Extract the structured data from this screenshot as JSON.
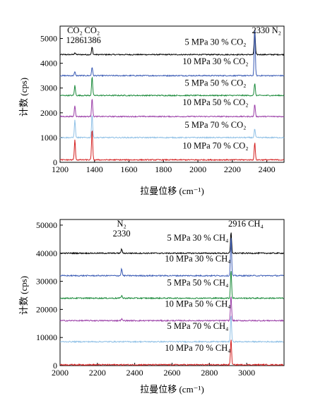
{
  "chart_data": [
    {
      "type": "line",
      "xlabel": "拉曼位移 (cm⁻¹)",
      "ylabel": "计数 (cps)",
      "xlim": [
        1200,
        2500
      ],
      "ylim": [
        0,
        5500
      ],
      "xticks": [
        1200,
        1400,
        1600,
        1800,
        2000,
        2200,
        2400
      ],
      "yticks": [
        0,
        1000,
        2000,
        3000,
        4000,
        5000
      ],
      "annotations": [
        {
          "text": "CO₂",
          "sub": "1286",
          "x": 1286
        },
        {
          "text": "CO₂",
          "sub": "1386",
          "x": 1386
        },
        {
          "text": "2330 N₂",
          "x": 2330
        }
      ],
      "series": [
        {
          "name": "5 MPa 30 % CO₂",
          "color": "#000000",
          "baseline": 4350,
          "peaks": [
            {
              "x": 1286,
              "h": 80
            },
            {
              "x": 1386,
              "h": 300
            },
            {
              "x": 2330,
              "h": 1050
            }
          ]
        },
        {
          "name": "10 MPa 30 % CO₂",
          "color": "#3a5bb5",
          "baseline": 3500,
          "peaks": [
            {
              "x": 1286,
              "h": 150
            },
            {
              "x": 1386,
              "h": 350
            },
            {
              "x": 2330,
              "h": 1900
            }
          ]
        },
        {
          "name": "5 MPa 50 % CO₂",
          "color": "#1a8a3a",
          "baseline": 2700,
          "peaks": [
            {
              "x": 1286,
              "h": 400
            },
            {
              "x": 1386,
              "h": 750
            },
            {
              "x": 2330,
              "h": 500
            }
          ]
        },
        {
          "name": "10 MPa 50 % CO₂",
          "color": "#9b3fa8",
          "baseline": 1850,
          "peaks": [
            {
              "x": 1286,
              "h": 450
            },
            {
              "x": 1386,
              "h": 750
            },
            {
              "x": 2330,
              "h": 500
            }
          ]
        },
        {
          "name": "5 MPa 70 % CO₂",
          "color": "#8fc0e6",
          "baseline": 1000,
          "peaks": [
            {
              "x": 1286,
              "h": 700
            },
            {
              "x": 1386,
              "h": 950
            },
            {
              "x": 2330,
              "h": 350
            }
          ]
        },
        {
          "name": "10 MPa 70 % CO₂",
          "color": "#d42020",
          "baseline": 100,
          "peaks": [
            {
              "x": 1286,
              "h": 800
            },
            {
              "x": 1386,
              "h": 1250
            },
            {
              "x": 2330,
              "h": 700
            }
          ]
        }
      ]
    },
    {
      "type": "line",
      "xlabel": "拉曼位移 (cm⁻¹)",
      "ylabel": "计数 (cps)",
      "xlim": [
        2000,
        3200
      ],
      "ylim": [
        0,
        52000
      ],
      "xticks": [
        2000,
        2200,
        2400,
        2600,
        2800,
        3000
      ],
      "yticks": [
        0,
        10000,
        20000,
        30000,
        40000,
        50000
      ],
      "annotations": [
        {
          "text": "N₂",
          "sub": "2330",
          "x": 2330
        },
        {
          "text": "2916 CH₄",
          "x": 2916
        }
      ],
      "series": [
        {
          "name": "5 MPa 30 % CH₄",
          "color": "#000000",
          "baseline": 40000,
          "peaks": [
            {
              "x": 2330,
              "h": 1500
            },
            {
              "x": 2916,
              "h": 7500
            }
          ]
        },
        {
          "name": "10 MPa 30 % CH₄",
          "color": "#3a5bb5",
          "baseline": 32000,
          "peaks": [
            {
              "x": 2330,
              "h": 2500
            },
            {
              "x": 2916,
              "h": 14000
            }
          ]
        },
        {
          "name": "5 MPa 50 % CH₄",
          "color": "#1a8a3a",
          "baseline": 24000,
          "peaks": [
            {
              "x": 2330,
              "h": 1000
            },
            {
              "x": 2916,
              "h": 10000
            }
          ]
        },
        {
          "name": "10 MPa 50 % CH₄",
          "color": "#9b3fa8",
          "baseline": 16000,
          "peaks": [
            {
              "x": 2330,
              "h": 600
            },
            {
              "x": 2916,
              "h": 9000
            }
          ]
        },
        {
          "name": "5 MPa 70 % CH₄",
          "color": "#8fc0e6",
          "baseline": 8500,
          "peaks": [
            {
              "x": 2916,
              "h": 9500
            }
          ]
        },
        {
          "name": "10 MPa 70 % CH₄",
          "color": "#d42020",
          "baseline": 300,
          "peaks": [
            {
              "x": 2916,
              "h": 9000
            }
          ]
        }
      ]
    }
  ]
}
